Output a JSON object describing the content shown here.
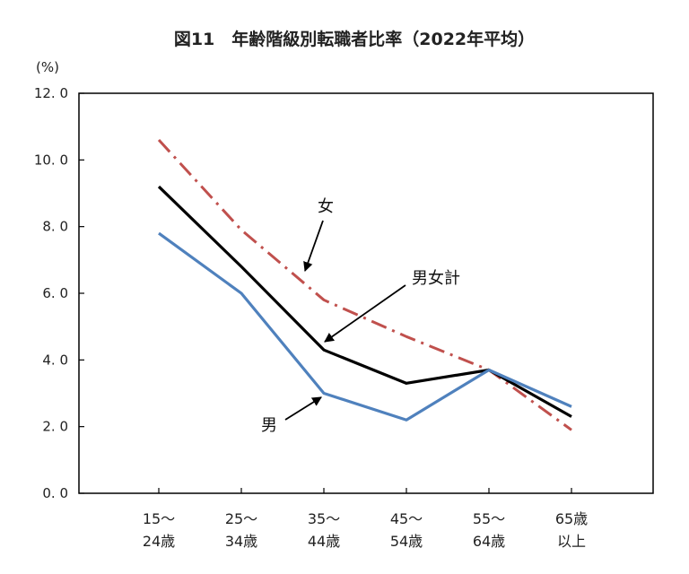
{
  "chart_data": {
    "type": "line",
    "title": "図11　年齢階級別転職者比率（2022年平均）",
    "ylabel": "(%)",
    "xlabel": "",
    "ylim": [
      0,
      12
    ],
    "yticks": [
      {
        "value": 0,
        "label": "0. 0"
      },
      {
        "value": 2,
        "label": "2. 0"
      },
      {
        "value": 4,
        "label": "4. 0"
      },
      {
        "value": 6,
        "label": "6. 0"
      },
      {
        "value": 8,
        "label": "8. 0"
      },
      {
        "value": 10,
        "label": "10. 0"
      },
      {
        "value": 12,
        "label": "12. 0"
      }
    ],
    "categories": [
      [
        "15～",
        "24歳"
      ],
      [
        "25～",
        "34歳"
      ],
      [
        "35～",
        "44歳"
      ],
      [
        "45～",
        "54歳"
      ],
      [
        "55～",
        "64歳"
      ],
      [
        "65歳",
        "以上"
      ]
    ],
    "series": [
      {
        "name": "女",
        "color": "#c0504d",
        "dash": "dashdot",
        "values": [
          10.6,
          7.9,
          5.8,
          4.7,
          3.7,
          1.9
        ]
      },
      {
        "name": "男女計",
        "color": "#000000",
        "dash": "solid",
        "values": [
          9.2,
          6.8,
          4.3,
          3.3,
          3.7,
          2.3
        ]
      },
      {
        "name": "男",
        "color": "#4f81bd",
        "dash": "solid",
        "values": [
          7.8,
          6.0,
          3.0,
          2.2,
          3.7,
          2.6
        ]
      }
    ],
    "annotations": [
      {
        "text": "女",
        "series": "女"
      },
      {
        "text": "男女計",
        "series": "男女計"
      },
      {
        "text": "男",
        "series": "男"
      }
    ],
    "grid": false,
    "legend": "none"
  }
}
